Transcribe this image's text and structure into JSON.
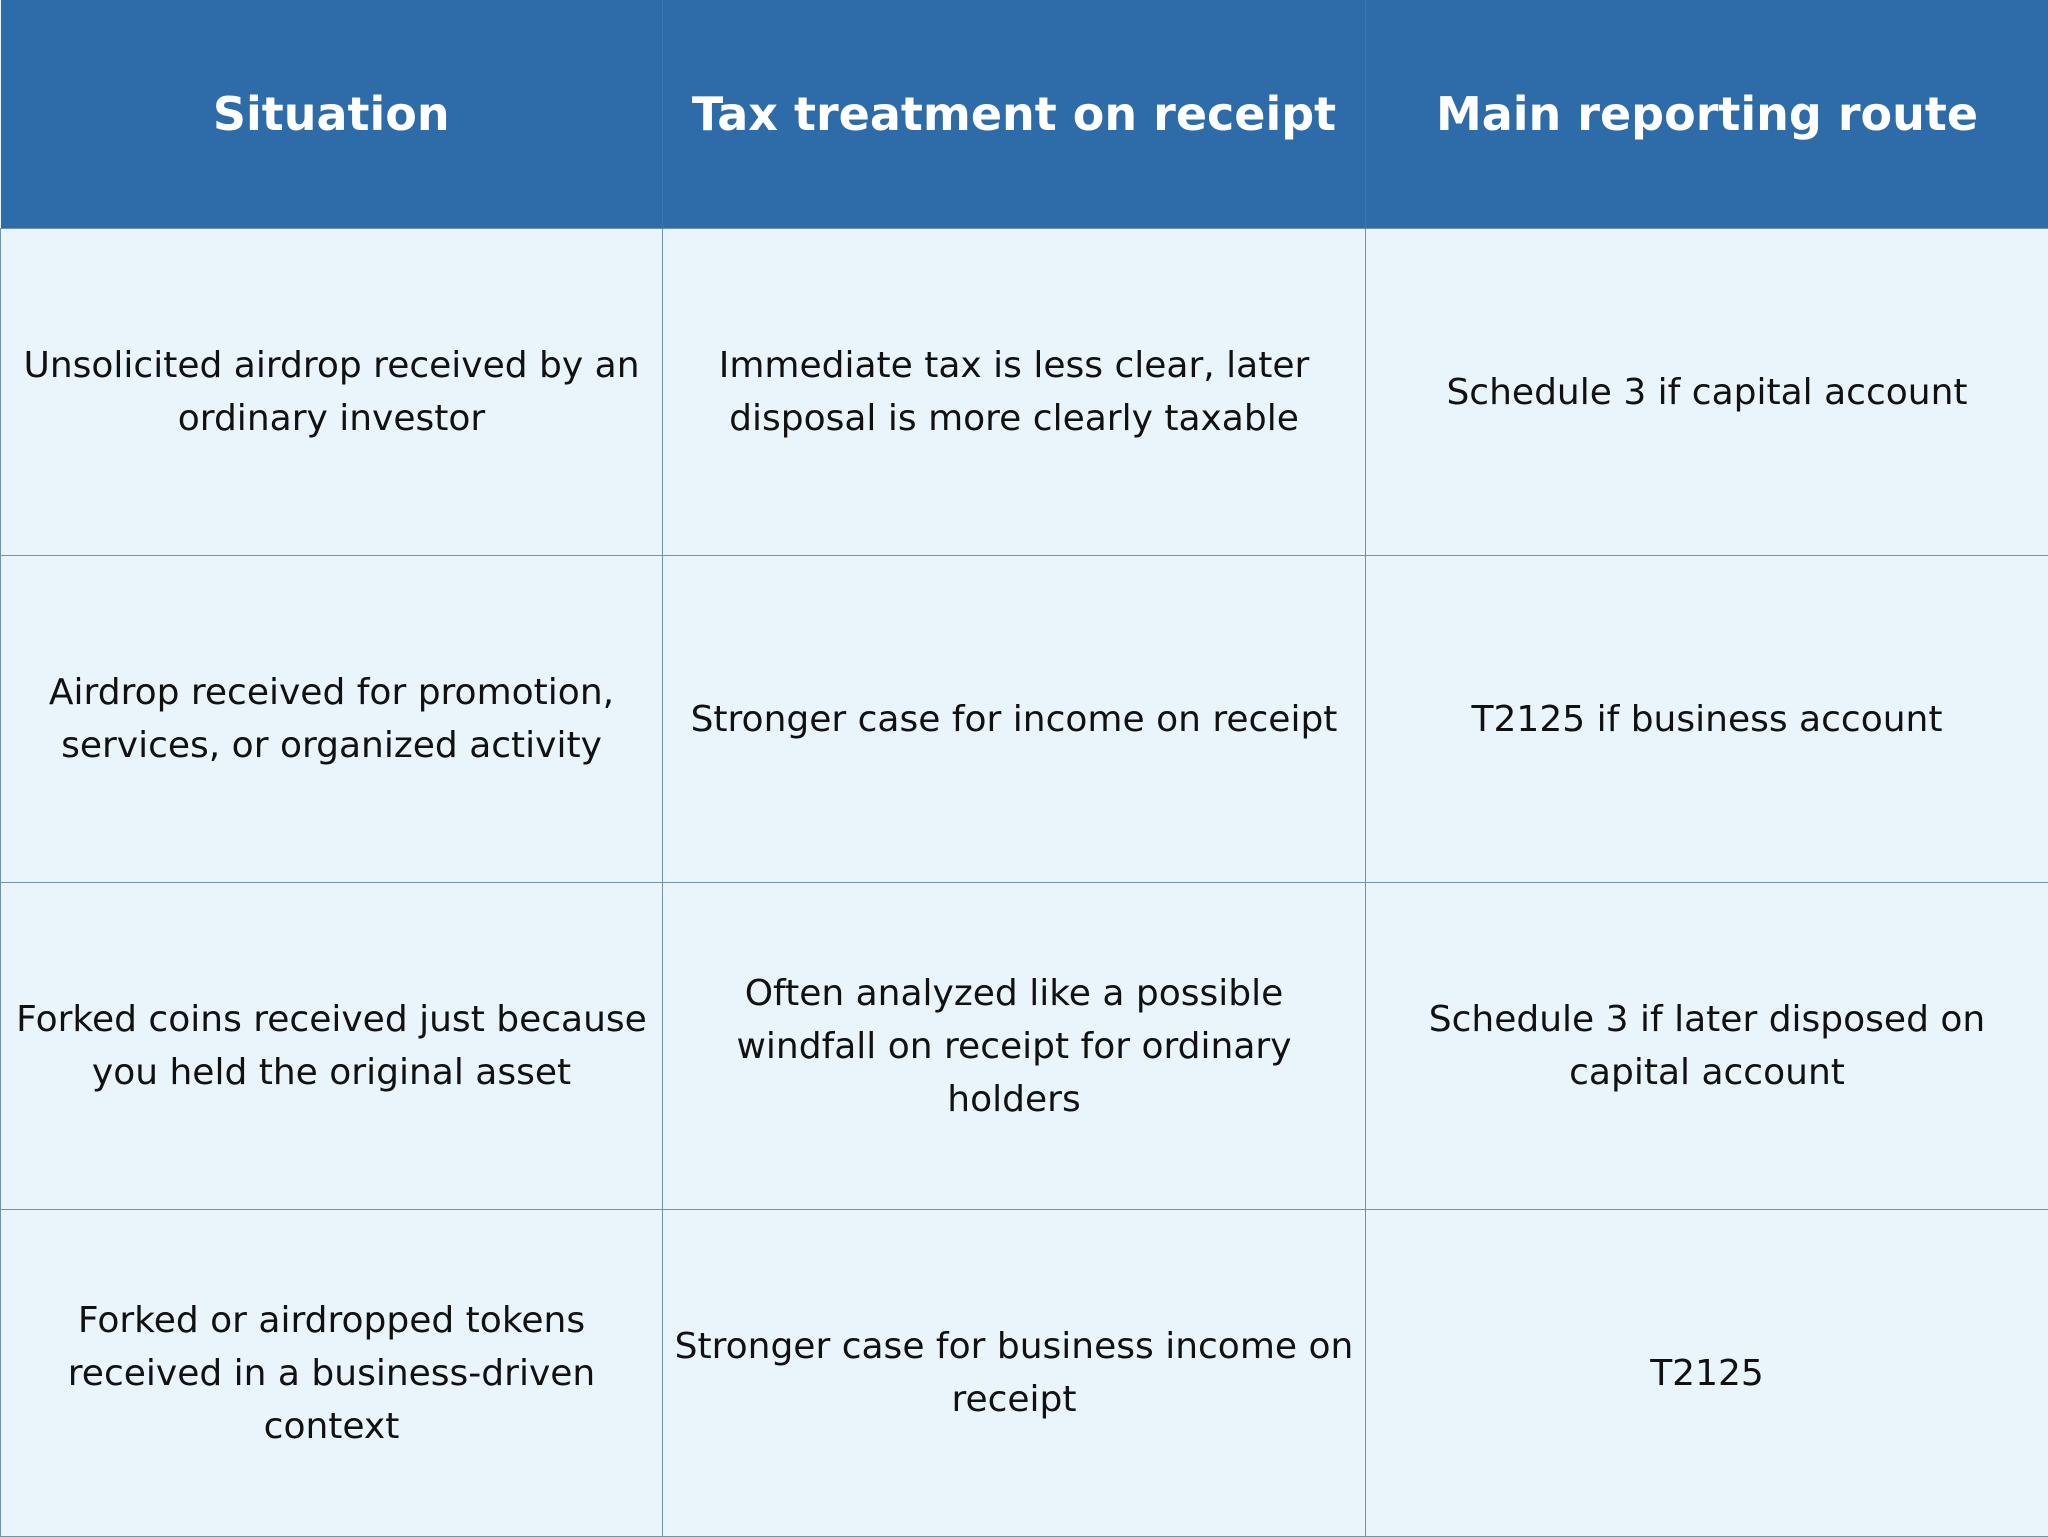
{
  "table": {
    "header": [
      "Situation",
      "Tax treatment on receipt",
      "Main reporting route"
    ],
    "rows": [
      [
        "Unsolicited airdrop received by an ordinary investor",
        "Immediate tax is less clear, later disposal is more clearly taxable",
        "Schedule 3 if capital account"
      ],
      [
        "Airdrop received for promotion, services, or organized activity",
        "Stronger case for income on receipt",
        "T2125 if business account"
      ],
      [
        "Forked coins received just because you held the original asset",
        "Often analyzed like a possible windfall on receipt for ordinary holders",
        "Schedule 3 if later disposed on capital account"
      ],
      [
        "Forked or airdropped tokens received in a business-driven context",
        "Stronger case for business income on receipt",
        "T2125"
      ]
    ]
  }
}
